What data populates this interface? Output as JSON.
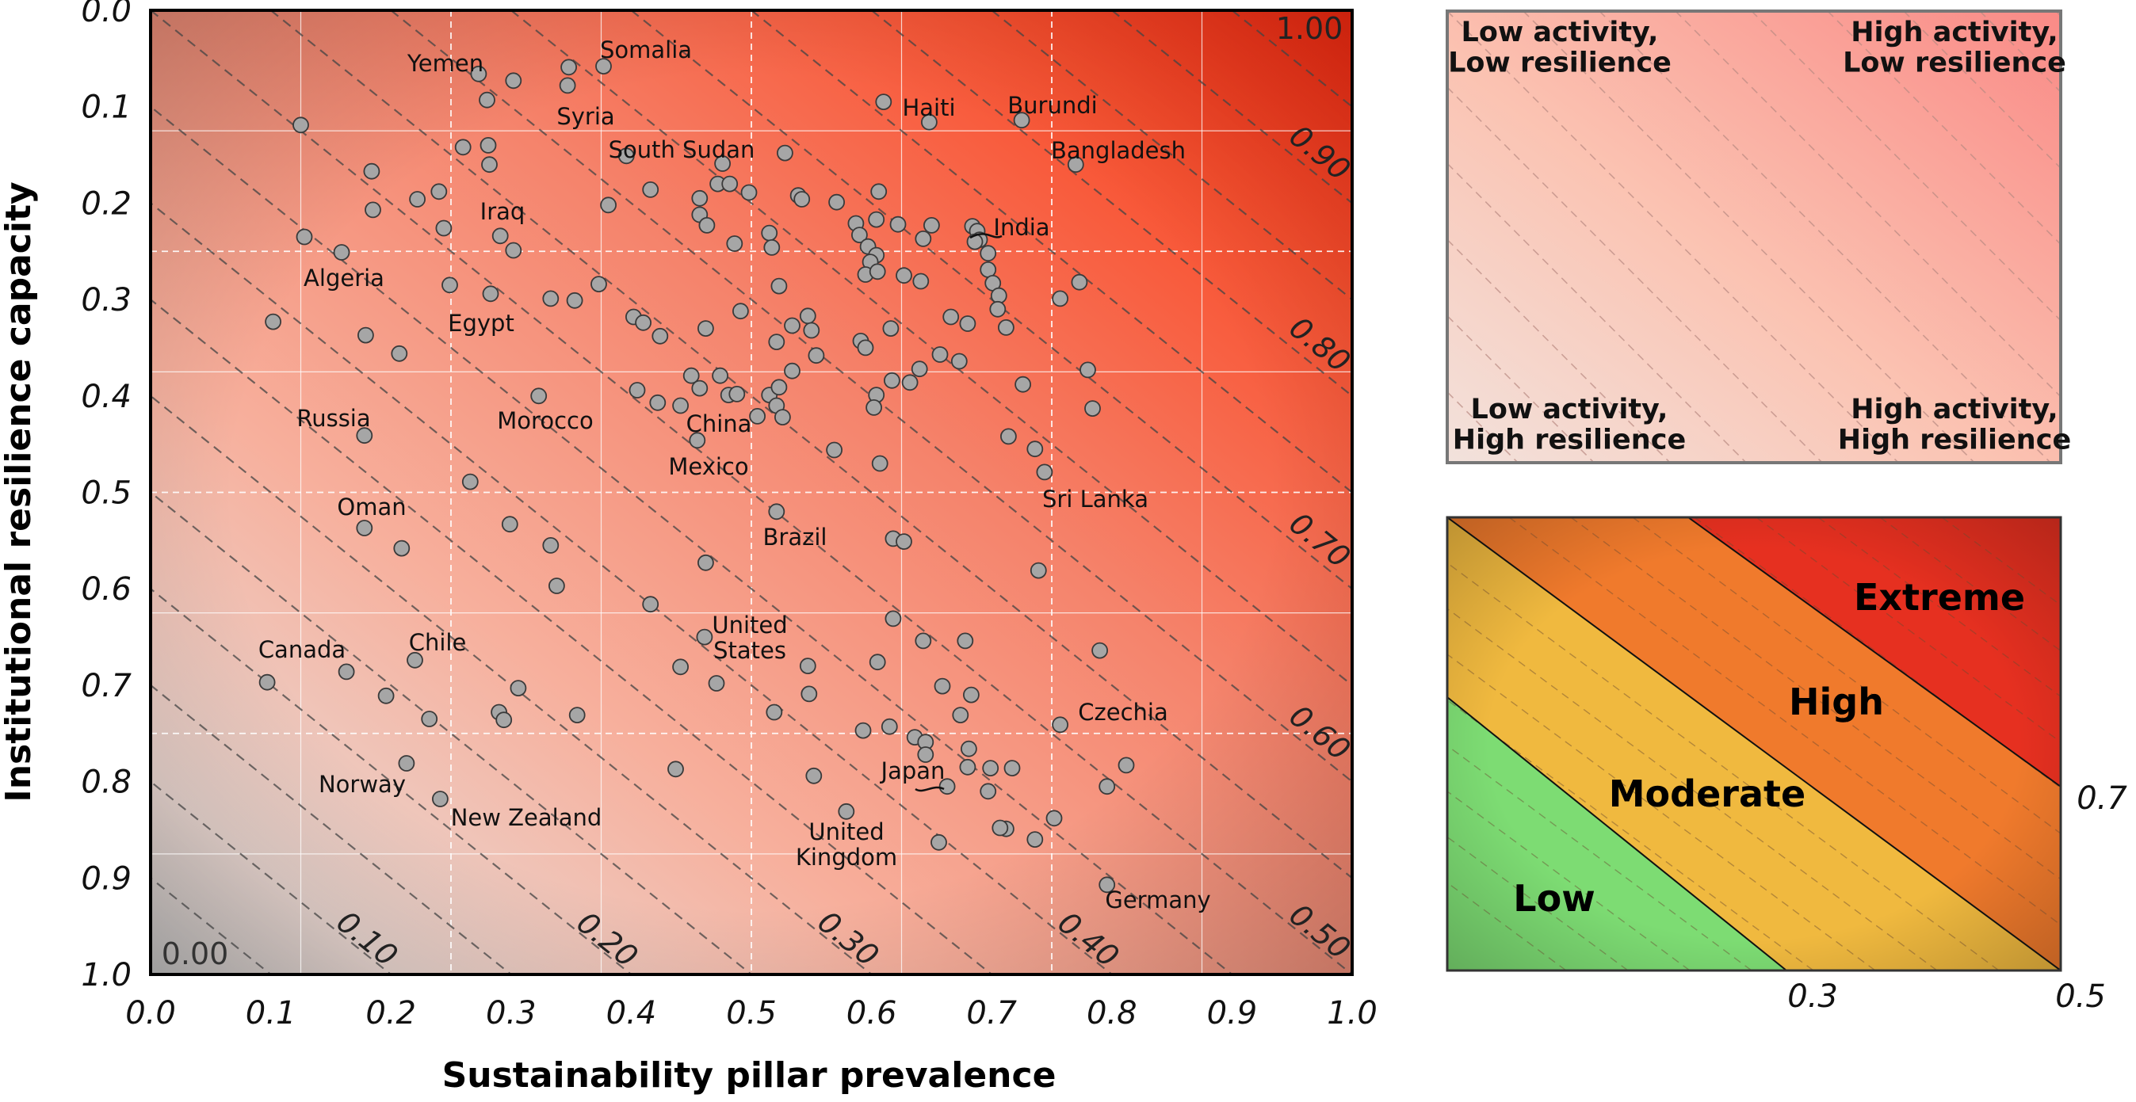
{
  "chart_data": [
    {
      "type": "scatter",
      "xlabel": "Sustainability pillar prevalence",
      "ylabel": "Institutional resilience capacity",
      "xlim": [
        0,
        1
      ],
      "ylim": [
        1,
        0
      ],
      "y_inverted": true,
      "grid": true,
      "x_ticks": [
        "0.0",
        "0.1",
        "0.2",
        "0.3",
        "0.4",
        "0.5",
        "0.6",
        "0.7",
        "0.8",
        "0.9",
        "1.0"
      ],
      "y_ticks": [
        "0.0",
        "0.1",
        "0.2",
        "0.3",
        "0.4",
        "0.5",
        "0.6",
        "0.7",
        "0.8",
        "0.9",
        "1.0"
      ],
      "corner_labels": {
        "low": "0.00",
        "high": "1.00"
      },
      "contour_labels": [
        "0.10",
        "0.20",
        "0.30",
        "0.40",
        "0.50",
        "0.60",
        "0.70",
        "0.80",
        "0.90"
      ],
      "points": [
        [
          0.273,
          0.066
        ],
        [
          0.302,
          0.073
        ],
        [
          0.348,
          0.059
        ],
        [
          0.377,
          0.058
        ],
        [
          0.347,
          0.078
        ],
        [
          0.28,
          0.093
        ],
        [
          0.61,
          0.095
        ],
        [
          0.648,
          0.116
        ],
        [
          0.725,
          0.114
        ],
        [
          0.77,
          0.16
        ],
        [
          0.125,
          0.119
        ],
        [
          0.184,
          0.167
        ],
        [
          0.185,
          0.207
        ],
        [
          0.222,
          0.196
        ],
        [
          0.24,
          0.188
        ],
        [
          0.26,
          0.142
        ],
        [
          0.281,
          0.14
        ],
        [
          0.282,
          0.16
        ],
        [
          0.244,
          0.226
        ],
        [
          0.128,
          0.235
        ],
        [
          0.159,
          0.251
        ],
        [
          0.291,
          0.234
        ],
        [
          0.302,
          0.249
        ],
        [
          0.381,
          0.202
        ],
        [
          0.396,
          0.151
        ],
        [
          0.416,
          0.186
        ],
        [
          0.457,
          0.195
        ],
        [
          0.457,
          0.212
        ],
        [
          0.472,
          0.18
        ],
        [
          0.476,
          0.159
        ],
        [
          0.482,
          0.18
        ],
        [
          0.463,
          0.223
        ],
        [
          0.486,
          0.242
        ],
        [
          0.498,
          0.189
        ],
        [
          0.528,
          0.148
        ],
        [
          0.539,
          0.192
        ],
        [
          0.542,
          0.196
        ],
        [
          0.571,
          0.199
        ],
        [
          0.587,
          0.221
        ],
        [
          0.604,
          0.217
        ],
        [
          0.606,
          0.188
        ],
        [
          0.622,
          0.222
        ],
        [
          0.643,
          0.237
        ],
        [
          0.65,
          0.223
        ],
        [
          0.515,
          0.231
        ],
        [
          0.517,
          0.246
        ],
        [
          0.59,
          0.233
        ],
        [
          0.597,
          0.245
        ],
        [
          0.604,
          0.254
        ],
        [
          0.599,
          0.261
        ],
        [
          0.595,
          0.274
        ],
        [
          0.605,
          0.271
        ],
        [
          0.627,
          0.275
        ],
        [
          0.641,
          0.281
        ],
        [
          0.684,
          0.224
        ],
        [
          0.688,
          0.229
        ],
        [
          0.69,
          0.238
        ],
        [
          0.686,
          0.24
        ],
        [
          0.697,
          0.252
        ],
        [
          0.697,
          0.269
        ],
        [
          0.701,
          0.283
        ],
        [
          0.706,
          0.296
        ],
        [
          0.705,
          0.31
        ],
        [
          0.666,
          0.318
        ],
        [
          0.68,
          0.325
        ],
        [
          0.712,
          0.329
        ],
        [
          0.726,
          0.388
        ],
        [
          0.757,
          0.299
        ],
        [
          0.773,
          0.282
        ],
        [
          0.78,
          0.373
        ],
        [
          0.784,
          0.413
        ],
        [
          0.249,
          0.285
        ],
        [
          0.283,
          0.294
        ],
        [
          0.333,
          0.299
        ],
        [
          0.353,
          0.301
        ],
        [
          0.373,
          0.284
        ],
        [
          0.402,
          0.318
        ],
        [
          0.41,
          0.324
        ],
        [
          0.424,
          0.338
        ],
        [
          0.491,
          0.312
        ],
        [
          0.462,
          0.33
        ],
        [
          0.534,
          0.327
        ],
        [
          0.523,
          0.286
        ],
        [
          0.547,
          0.317
        ],
        [
          0.55,
          0.332
        ],
        [
          0.521,
          0.344
        ],
        [
          0.554,
          0.358
        ],
        [
          0.591,
          0.343
        ],
        [
          0.595,
          0.35
        ],
        [
          0.616,
          0.33
        ],
        [
          0.657,
          0.357
        ],
        [
          0.673,
          0.364
        ],
        [
          0.64,
          0.372
        ],
        [
          0.617,
          0.384
        ],
        [
          0.604,
          0.399
        ],
        [
          0.602,
          0.412
        ],
        [
          0.632,
          0.386
        ],
        [
          0.45,
          0.379
        ],
        [
          0.474,
          0.379
        ],
        [
          0.481,
          0.399
        ],
        [
          0.488,
          0.398
        ],
        [
          0.515,
          0.399
        ],
        [
          0.523,
          0.391
        ],
        [
          0.534,
          0.374
        ],
        [
          0.521,
          0.41
        ],
        [
          0.526,
          0.422
        ],
        [
          0.505,
          0.421
        ],
        [
          0.457,
          0.392
        ],
        [
          0.441,
          0.41
        ],
        [
          0.422,
          0.407
        ],
        [
          0.405,
          0.394
        ],
        [
          0.455,
          0.446
        ],
        [
          0.569,
          0.456
        ],
        [
          0.607,
          0.47
        ],
        [
          0.714,
          0.442
        ],
        [
          0.736,
          0.455
        ],
        [
          0.744,
          0.479
        ],
        [
          0.102,
          0.323
        ],
        [
          0.179,
          0.337
        ],
        [
          0.207,
          0.356
        ],
        [
          0.323,
          0.4
        ],
        [
          0.178,
          0.441
        ],
        [
          0.266,
          0.489
        ],
        [
          0.178,
          0.537
        ],
        [
          0.209,
          0.558
        ],
        [
          0.299,
          0.533
        ],
        [
          0.333,
          0.555
        ],
        [
          0.338,
          0.597
        ],
        [
          0.416,
          0.616
        ],
        [
          0.462,
          0.573
        ],
        [
          0.521,
          0.52
        ],
        [
          0.618,
          0.548
        ],
        [
          0.627,
          0.551
        ],
        [
          0.618,
          0.631
        ],
        [
          0.739,
          0.581
        ],
        [
          0.441,
          0.681
        ],
        [
          0.461,
          0.65
        ],
        [
          0.471,
          0.698
        ],
        [
          0.547,
          0.68
        ],
        [
          0.548,
          0.709
        ],
        [
          0.605,
          0.676
        ],
        [
          0.643,
          0.654
        ],
        [
          0.678,
          0.654
        ],
        [
          0.659,
          0.701
        ],
        [
          0.683,
          0.71
        ],
        [
          0.674,
          0.731
        ],
        [
          0.593,
          0.747
        ],
        [
          0.615,
          0.743
        ],
        [
          0.636,
          0.754
        ],
        [
          0.645,
          0.759
        ],
        [
          0.681,
          0.766
        ],
        [
          0.68,
          0.785
        ],
        [
          0.699,
          0.786
        ],
        [
          0.717,
          0.786
        ],
        [
          0.519,
          0.728
        ],
        [
          0.437,
          0.787
        ],
        [
          0.552,
          0.794
        ],
        [
          0.645,
          0.772
        ],
        [
          0.663,
          0.805
        ],
        [
          0.697,
          0.81
        ],
        [
          0.712,
          0.849
        ],
        [
          0.579,
          0.831
        ],
        [
          0.656,
          0.863
        ],
        [
          0.707,
          0.848
        ],
        [
          0.736,
          0.86
        ],
        [
          0.752,
          0.838
        ],
        [
          0.757,
          0.741
        ],
        [
          0.796,
          0.805
        ],
        [
          0.812,
          0.783
        ],
        [
          0.79,
          0.664
        ],
        [
          0.796,
          0.907
        ],
        [
          0.097,
          0.697
        ],
        [
          0.163,
          0.686
        ],
        [
          0.22,
          0.674
        ],
        [
          0.196,
          0.711
        ],
        [
          0.232,
          0.735
        ],
        [
          0.29,
          0.728
        ],
        [
          0.306,
          0.703
        ],
        [
          0.294,
          0.736
        ],
        [
          0.355,
          0.731
        ],
        [
          0.213,
          0.781
        ],
        [
          0.241,
          0.818
        ]
      ],
      "labels": [
        {
          "text": "Yemen"
        },
        {
          "text": "Somalia"
        },
        {
          "text": "Syria"
        },
        {
          "text": "Haiti"
        },
        {
          "text": "Burundi"
        },
        {
          "text": "South Sudan"
        },
        {
          "text": "Bangladesh"
        },
        {
          "text": "Iraq"
        },
        {
          "text": "India"
        },
        {
          "text": "Algeria"
        },
        {
          "text": "Egypt"
        },
        {
          "text": "Russia"
        },
        {
          "text": "Morocco"
        },
        {
          "text": "China"
        },
        {
          "text": "Mexico"
        },
        {
          "text": "Sri Lanka"
        },
        {
          "text": "Oman"
        },
        {
          "text": "Brazil"
        },
        {
          "text": "United\nStates"
        },
        {
          "text": "Canada"
        },
        {
          "text": "Chile"
        },
        {
          "text": "Czechia"
        },
        {
          "text": "Norway"
        },
        {
          "text": "Japan"
        },
        {
          "text": "New Zealand"
        },
        {
          "text": "United\nKingdom"
        },
        {
          "text": "Germany"
        }
      ]
    }
  ],
  "quadrants": {
    "top_left": "Low activity,\nLow resilience",
    "top_right": "High activity,\nLow resilience",
    "bottom_left": "Low activity,\nHigh resilience",
    "bottom_right": "High activity,\nHigh resilience"
  },
  "risk_legend": {
    "categories": [
      "Low",
      "Moderate",
      "High",
      "Extreme"
    ],
    "colors": [
      "#7ddc73",
      "#f0b93f",
      "#f07a2c",
      "#e63020"
    ],
    "threshold_labels": [
      "0.3",
      "0.5",
      "0.7"
    ]
  },
  "colors": {
    "point_fill": "#a6a6a6",
    "point_stroke": "#3a3a3a",
    "gradient_high": "#ff2a10",
    "gradient_low": "#c8c8c8"
  }
}
